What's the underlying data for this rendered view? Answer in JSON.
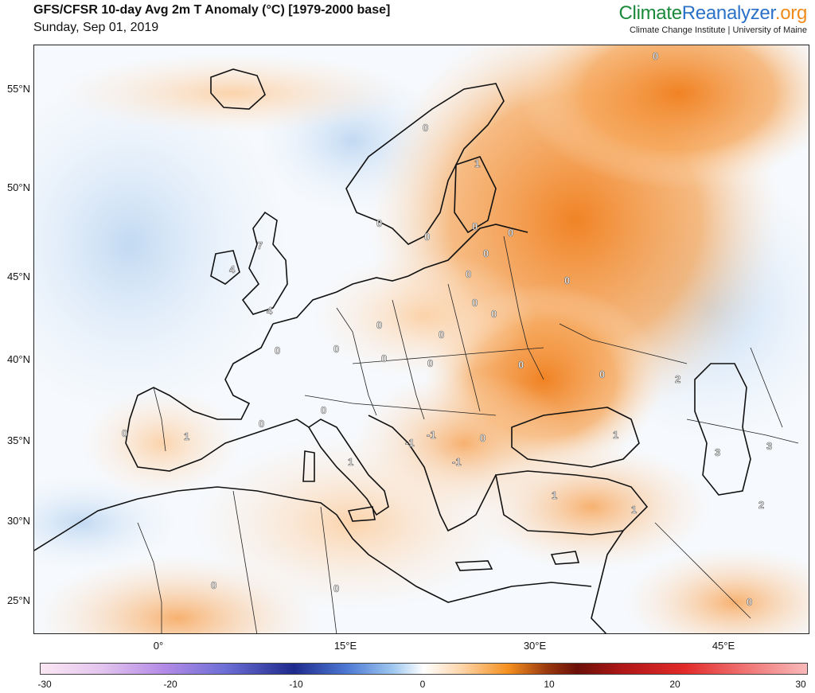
{
  "header": {
    "title": "GFS/CFSR 10-day Avg 2m T Anomaly (°C) [1979-2000 base]",
    "date": "Sunday, Sep 01, 2019"
  },
  "brand": {
    "part1": "Climate",
    "part2": "Reanalyzer",
    "part3": ".org",
    "subtitle": "Climate Change Institute | University of Maine"
  },
  "axes": {
    "lat_labels": [
      "55°N",
      "50°N",
      "45°N",
      "40°N",
      "35°N",
      "30°N",
      "25°N"
    ],
    "lon_labels": [
      "0°",
      "15°E",
      "30°E",
      "45°E"
    ]
  },
  "colorbar": {
    "ticks": [
      "-30",
      "-20",
      "-10",
      "0",
      "10",
      "20",
      "30"
    ]
  },
  "contour_labels": [
    "0",
    "0",
    "1",
    "0",
    "0",
    "0",
    "0",
    "0",
    "7",
    "4",
    "4",
    "0",
    "0",
    "0",
    "0",
    "0",
    "0",
    "0",
    "0",
    "0",
    "0",
    "-1",
    "-1",
    "-1",
    "0",
    "1",
    "0",
    "0",
    "1",
    "1",
    "1",
    "0",
    "0",
    "0",
    "2",
    "2",
    "3",
    "3",
    "1",
    "0",
    "0",
    "0"
  ],
  "colors": {
    "warm_light": "#fde3c8",
    "warm": "#f9b173",
    "warm_strong": "#f28a2a",
    "cool_light": "#e3eefa",
    "cool": "#c5dbf3",
    "neutral": "#f7fbff",
    "border": "#222222"
  }
}
